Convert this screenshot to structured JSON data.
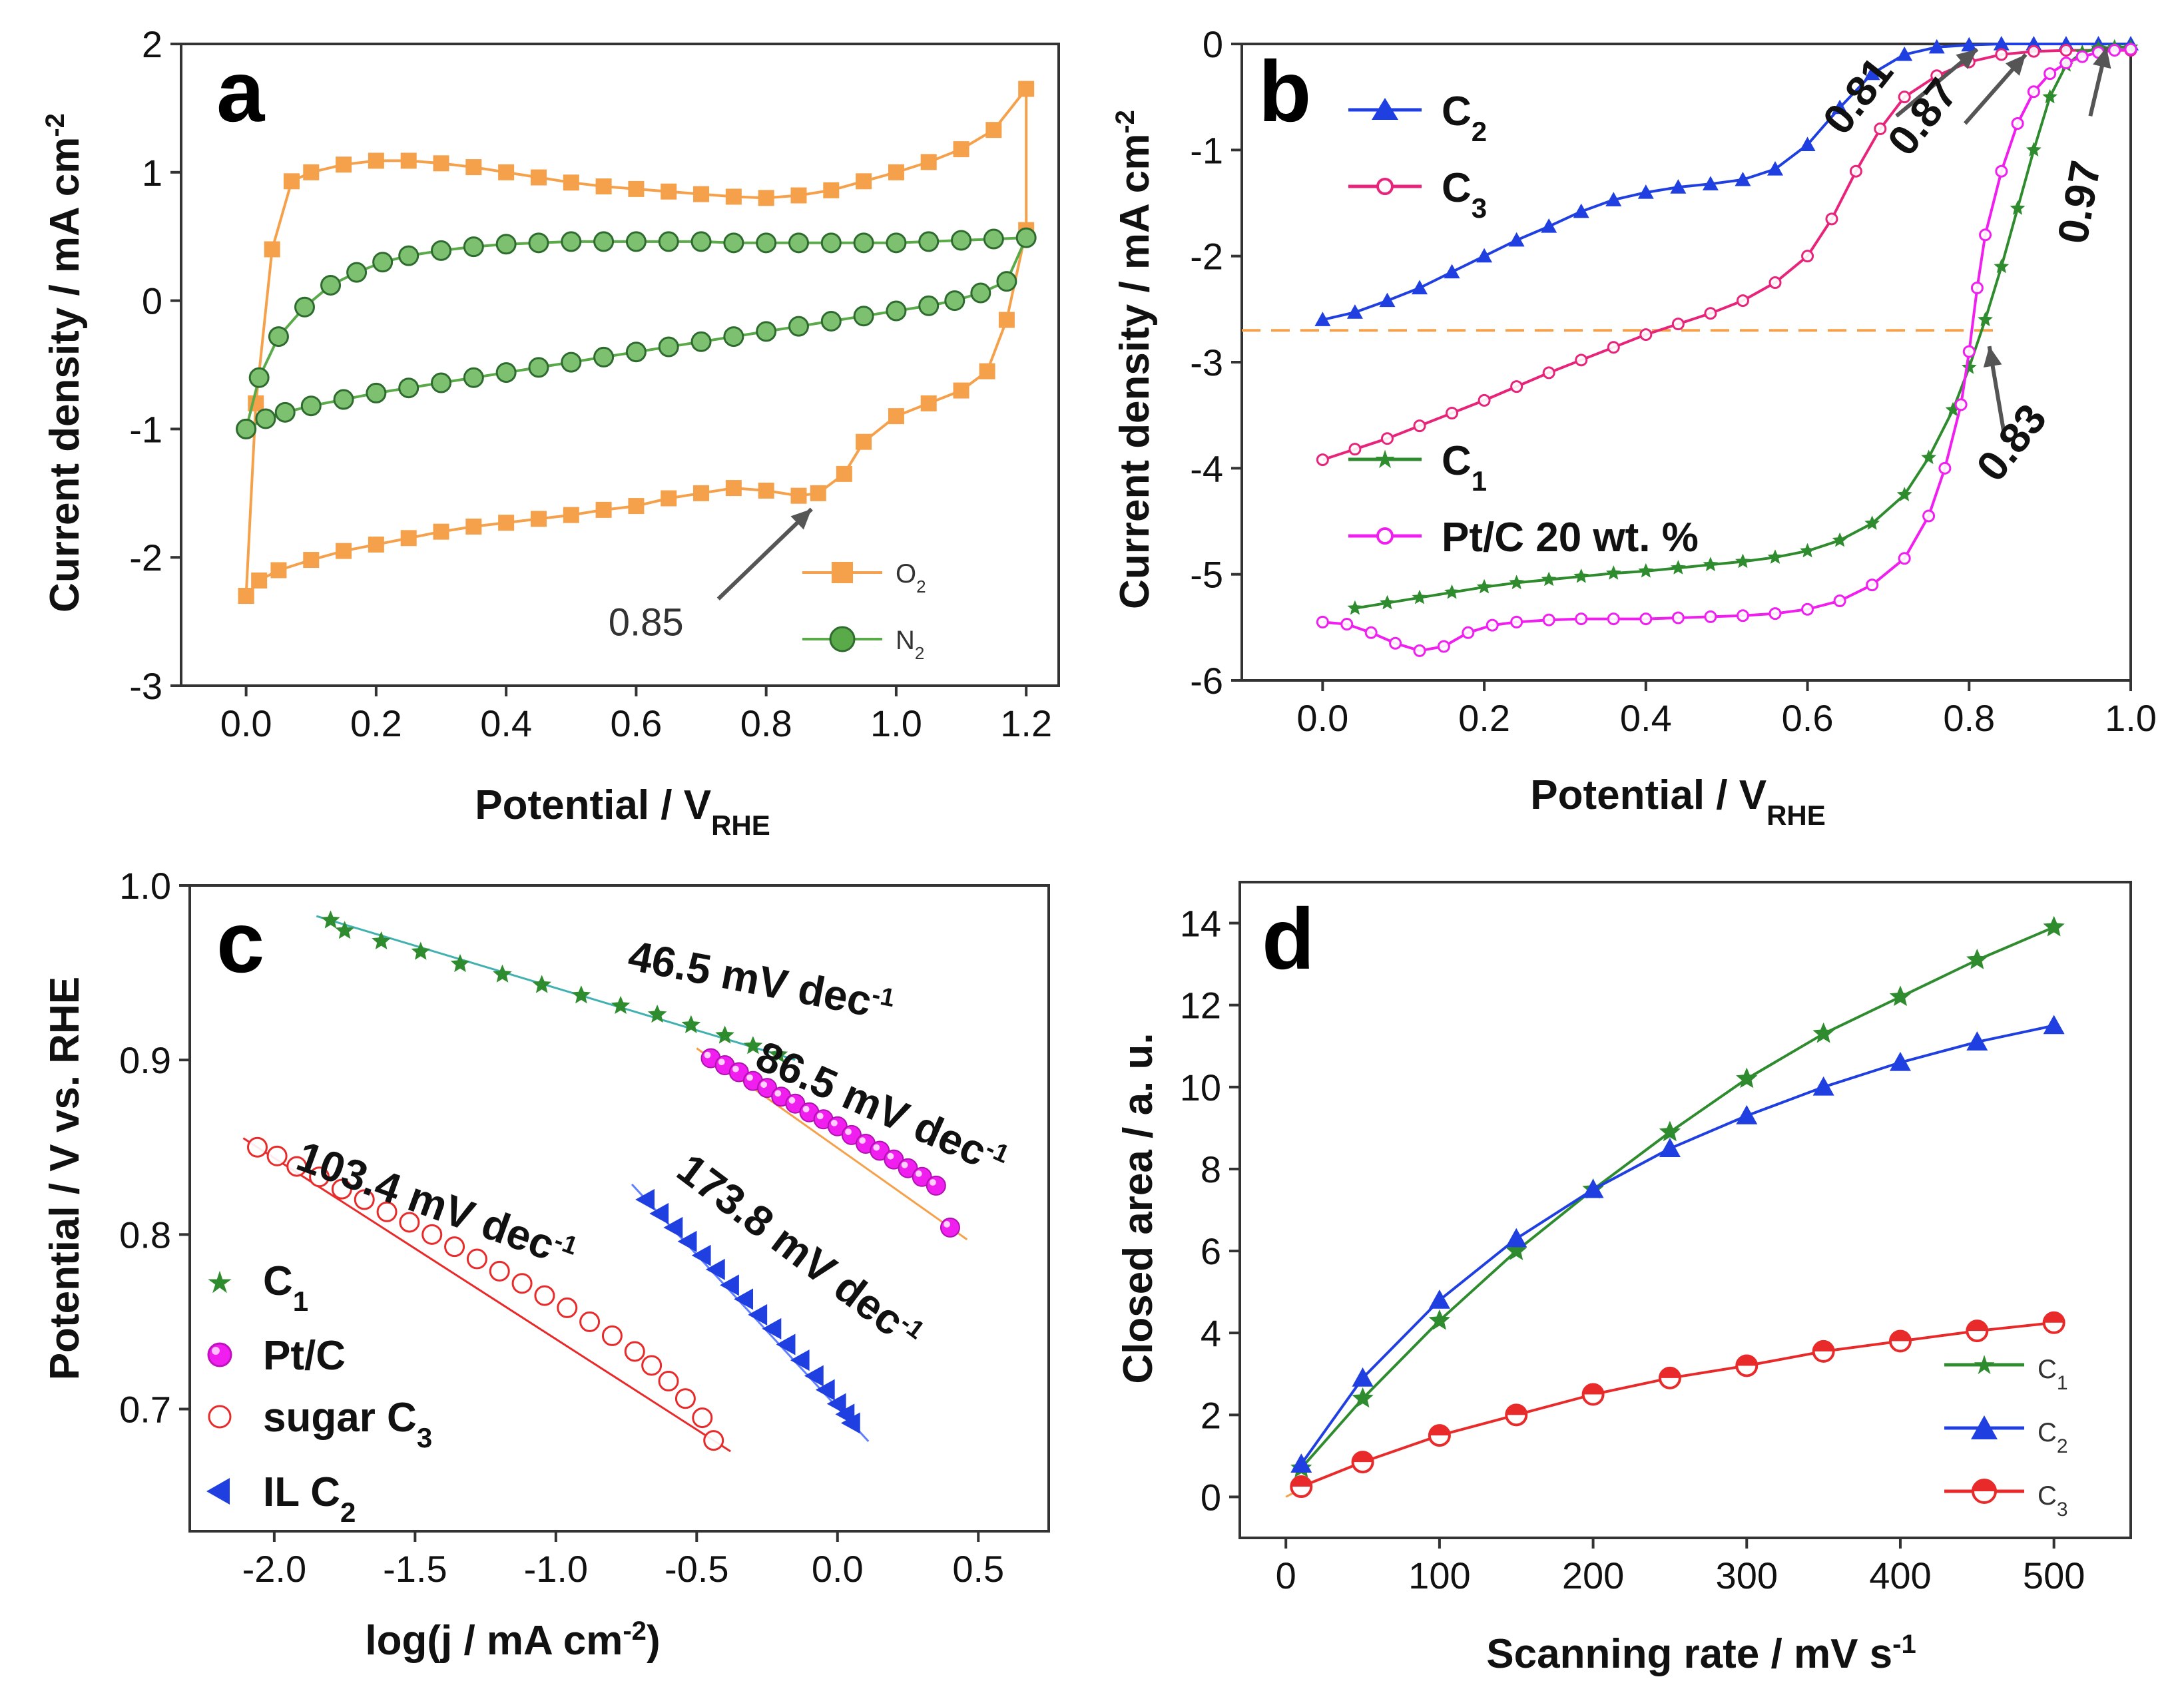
{
  "chart_data": [
    {
      "id": "a",
      "type": "line",
      "panel_label": "a",
      "xlabel": "Potential / V",
      "xlabel_sub": "RHE",
      "ylabel": "Current density / mA cm",
      "ylabel_sup": "-2",
      "xlim": [
        -0.1,
        1.25
      ],
      "ylim": [
        -3,
        2
      ],
      "xticks": [
        0.0,
        0.2,
        0.4,
        0.6,
        0.8,
        1.0,
        1.2
      ],
      "xtick_labels": [
        "0.0",
        "0.2",
        "0.4",
        "0.6",
        "0.8",
        "1.0",
        "1.2"
      ],
      "yticks": [
        -3,
        -2,
        -1,
        0,
        1,
        2
      ],
      "ytick_labels": [
        "-3",
        "-2",
        "-1",
        "0",
        "1",
        "2"
      ],
      "series": [
        {
          "name": "O2",
          "legend_main": "O",
          "legend_sub": "2",
          "color": "#F5A04A",
          "marker": "square",
          "x": [
            0.0,
            0.015,
            0.04,
            0.07,
            0.1,
            0.15,
            0.2,
            0.25,
            0.3,
            0.35,
            0.4,
            0.45,
            0.5,
            0.55,
            0.6,
            0.65,
            0.7,
            0.75,
            0.8,
            0.85,
            0.9,
            0.95,
            1.0,
            1.05,
            1.1,
            1.15,
            1.2,
            1.2,
            1.17,
            1.14,
            1.1,
            1.05,
            1.0,
            0.95,
            0.92,
            0.88,
            0.85,
            0.8,
            0.75,
            0.7,
            0.65,
            0.6,
            0.55,
            0.5,
            0.45,
            0.4,
            0.35,
            0.3,
            0.25,
            0.2,
            0.15,
            0.1,
            0.05,
            0.02,
            0.0
          ],
          "y": [
            -2.3,
            -0.8,
            0.4,
            0.93,
            1.0,
            1.06,
            1.09,
            1.09,
            1.07,
            1.04,
            1.0,
            0.96,
            0.92,
            0.89,
            0.87,
            0.85,
            0.83,
            0.81,
            0.8,
            0.82,
            0.86,
            0.93,
            1.0,
            1.08,
            1.18,
            1.33,
            1.65,
            0.55,
            -0.15,
            -0.55,
            -0.7,
            -0.8,
            -0.9,
            -1.1,
            -1.35,
            -1.5,
            -1.52,
            -1.48,
            -1.46,
            -1.5,
            -1.54,
            -1.6,
            -1.63,
            -1.67,
            -1.7,
            -1.73,
            -1.76,
            -1.8,
            -1.85,
            -1.9,
            -1.95,
            -2.02,
            -2.1,
            -2.18,
            -2.3
          ]
        },
        {
          "name": "N2",
          "legend_main": "N",
          "legend_sub": "2",
          "color": "#5AAA4A",
          "marker": "circle",
          "x": [
            0.0,
            0.02,
            0.05,
            0.09,
            0.13,
            0.17,
            0.21,
            0.25,
            0.3,
            0.35,
            0.4,
            0.45,
            0.5,
            0.55,
            0.6,
            0.65,
            0.7,
            0.75,
            0.8,
            0.85,
            0.9,
            0.95,
            1.0,
            1.05,
            1.1,
            1.15,
            1.2,
            1.17,
            1.13,
            1.09,
            1.05,
            1.0,
            0.95,
            0.9,
            0.85,
            0.8,
            0.75,
            0.7,
            0.65,
            0.6,
            0.55,
            0.5,
            0.45,
            0.4,
            0.35,
            0.3,
            0.25,
            0.2,
            0.15,
            0.1,
            0.06,
            0.03,
            0.0
          ],
          "y": [
            -1.0,
            -0.6,
            -0.28,
            -0.05,
            0.12,
            0.22,
            0.3,
            0.35,
            0.39,
            0.42,
            0.44,
            0.45,
            0.46,
            0.46,
            0.46,
            0.46,
            0.46,
            0.45,
            0.45,
            0.45,
            0.45,
            0.45,
            0.45,
            0.46,
            0.47,
            0.48,
            0.49,
            0.15,
            0.06,
            0.0,
            -0.04,
            -0.08,
            -0.12,
            -0.16,
            -0.2,
            -0.24,
            -0.28,
            -0.32,
            -0.36,
            -0.4,
            -0.44,
            -0.48,
            -0.52,
            -0.56,
            -0.6,
            -0.64,
            -0.68,
            -0.72,
            -0.77,
            -0.82,
            -0.87,
            -0.92,
            -1.0
          ]
        }
      ],
      "annotations": [
        {
          "text": "0.85",
          "x": 0.88,
          "y": -1.52
        }
      ]
    },
    {
      "id": "b",
      "type": "line",
      "panel_label": "b",
      "xlabel": "Potential / V",
      "xlabel_sub": "RHE",
      "ylabel": "Current density / mA cm",
      "ylabel_sup": "-2",
      "xlim": [
        -0.1,
        1.0
      ],
      "ylim": [
        -6,
        0
      ],
      "xticks": [
        0.0,
        0.2,
        0.4,
        0.6,
        0.8,
        1.0
      ],
      "xtick_labels": [
        "0.0",
        "0.2",
        "0.4",
        "0.6",
        "0.8",
        "1.0"
      ],
      "yticks": [
        -6,
        -5,
        -4,
        -3,
        -2,
        -1,
        0
      ],
      "ytick_labels": [
        "-6",
        "-5",
        "-4",
        "-3",
        "-2",
        "-1",
        "0"
      ],
      "reference_line_y": -2.7,
      "series": [
        {
          "name": "C2",
          "legend_main": "C",
          "legend_sub": "2",
          "color": "#1F3FE0",
          "marker": "triangle",
          "x": [
            0.0,
            0.04,
            0.08,
            0.12,
            0.16,
            0.2,
            0.24,
            0.28,
            0.32,
            0.36,
            0.4,
            0.44,
            0.48,
            0.52,
            0.56,
            0.6,
            0.64,
            0.68,
            0.72,
            0.76,
            0.8,
            0.84,
            0.88,
            0.92,
            0.96,
            1.0
          ],
          "y": [
            -2.6,
            -2.53,
            -2.42,
            -2.3,
            -2.15,
            -2.0,
            -1.85,
            -1.72,
            -1.58,
            -1.47,
            -1.4,
            -1.35,
            -1.32,
            -1.28,
            -1.18,
            -0.95,
            -0.6,
            -0.28,
            -0.1,
            -0.03,
            -0.01,
            0.0,
            0.0,
            0.0,
            0.0,
            0.0
          ]
        },
        {
          "name": "C3",
          "legend_main": "C",
          "legend_sub": "3",
          "color": "#E8237A",
          "marker": "circle-open",
          "x": [
            0.0,
            0.04,
            0.08,
            0.12,
            0.16,
            0.2,
            0.24,
            0.28,
            0.32,
            0.36,
            0.4,
            0.44,
            0.48,
            0.52,
            0.56,
            0.6,
            0.63,
            0.66,
            0.69,
            0.72,
            0.76,
            0.8,
            0.84,
            0.88,
            0.92,
            0.96,
            1.0
          ],
          "y": [
            -3.92,
            -3.82,
            -3.72,
            -3.6,
            -3.48,
            -3.36,
            -3.23,
            -3.1,
            -2.98,
            -2.86,
            -2.74,
            -2.64,
            -2.54,
            -2.42,
            -2.25,
            -2.0,
            -1.65,
            -1.2,
            -0.8,
            -0.5,
            -0.3,
            -0.17,
            -0.1,
            -0.07,
            -0.06,
            -0.06,
            -0.06
          ]
        },
        {
          "name": "C1",
          "legend_main": "C",
          "legend_sub": "1",
          "color": "#2E8B2E",
          "marker": "star",
          "x": [
            0.04,
            0.08,
            0.12,
            0.16,
            0.2,
            0.24,
            0.28,
            0.32,
            0.36,
            0.4,
            0.44,
            0.48,
            0.52,
            0.56,
            0.6,
            0.64,
            0.68,
            0.72,
            0.75,
            0.78,
            0.8,
            0.82,
            0.84,
            0.86,
            0.88,
            0.9,
            0.92,
            0.94,
            0.96,
            0.98,
            1.0
          ],
          "y": [
            -5.32,
            -5.27,
            -5.22,
            -5.17,
            -5.12,
            -5.08,
            -5.05,
            -5.02,
            -4.99,
            -4.97,
            -4.94,
            -4.91,
            -4.88,
            -4.84,
            -4.78,
            -4.68,
            -4.52,
            -4.25,
            -3.9,
            -3.45,
            -3.05,
            -2.6,
            -2.1,
            -1.55,
            -1.0,
            -0.5,
            -0.2,
            -0.08,
            -0.04,
            -0.03,
            -0.03
          ]
        },
        {
          "name": "Pt/C 20 wt. %",
          "legend_main": "Pt/C 20 wt. %",
          "legend_sub": "",
          "color": "#F01FF0",
          "marker": "circle-open",
          "x": [
            0.0,
            0.03,
            0.06,
            0.09,
            0.12,
            0.15,
            0.18,
            0.21,
            0.24,
            0.28,
            0.32,
            0.36,
            0.4,
            0.44,
            0.48,
            0.52,
            0.56,
            0.6,
            0.64,
            0.68,
            0.72,
            0.75,
            0.77,
            0.79,
            0.8,
            0.81,
            0.82,
            0.84,
            0.86,
            0.88,
            0.9,
            0.92,
            0.94,
            0.96,
            0.98,
            1.0
          ],
          "y": [
            -5.45,
            -5.47,
            -5.55,
            -5.65,
            -5.72,
            -5.68,
            -5.55,
            -5.48,
            -5.45,
            -5.43,
            -5.42,
            -5.42,
            -5.42,
            -5.41,
            -5.4,
            -5.39,
            -5.37,
            -5.33,
            -5.25,
            -5.1,
            -4.85,
            -4.45,
            -4.0,
            -3.4,
            -2.9,
            -2.3,
            -1.8,
            -1.2,
            -0.75,
            -0.45,
            -0.28,
            -0.18,
            -0.12,
            -0.08,
            -0.06,
            -0.05
          ]
        }
      ],
      "annotations": [
        {
          "text": "0.81",
          "x": 0.81
        },
        {
          "text": "0.87",
          "x": 0.87
        },
        {
          "text": "0.97",
          "x": 0.97
        },
        {
          "text": "0.83",
          "x": 0.83
        }
      ]
    },
    {
      "id": "c",
      "type": "scatter",
      "panel_label": "c",
      "xlabel": "log(j / mA cm",
      "xlabel_sup": "-2",
      "xlabel_close": ")",
      "ylabel": "Potential / V vs. RHE",
      "xlim": [
        -2.3,
        0.75
      ],
      "ylim": [
        0.63,
        1.0
      ],
      "xticks": [
        -2.0,
        -1.5,
        -1.0,
        -0.5,
        0.0,
        0.5
      ],
      "xtick_labels": [
        "-2.0",
        "-1.5",
        "-1.0",
        "-0.5",
        "0.0",
        "0.5"
      ],
      "yticks": [
        0.7,
        0.8,
        0.9,
        1.0
      ],
      "ytick_labels": [
        "0.7",
        "0.8",
        "0.9",
        "1.0"
      ],
      "series": [
        {
          "name": "C1",
          "legend_main": "C",
          "legend_sub": "1",
          "color": "#2E8B2E",
          "marker": "star",
          "fit_color": "#40B0B0",
          "x": [
            -1.8,
            -1.75,
            -1.62,
            -1.48,
            -1.34,
            -1.19,
            -1.05,
            -0.91,
            -0.77,
            -0.64,
            -0.52,
            -0.4,
            -0.3,
            -0.21
          ],
          "y": [
            0.98,
            0.974,
            0.968,
            0.962,
            0.955,
            0.949,
            0.943,
            0.937,
            0.931,
            0.926,
            0.92,
            0.914,
            0.908,
            0.903
          ]
        },
        {
          "name": "Pt/C",
          "legend_main": "Pt/C",
          "legend_sub": "",
          "color": "#F01FF0",
          "marker": "sphere",
          "fit_color": "#F5A04A",
          "x": [
            -0.45,
            -0.4,
            -0.35,
            -0.3,
            -0.25,
            -0.2,
            -0.15,
            -0.1,
            -0.05,
            0.0,
            0.05,
            0.1,
            0.15,
            0.2,
            0.25,
            0.3,
            0.35,
            0.4
          ],
          "y": [
            0.901,
            0.897,
            0.893,
            0.888,
            0.884,
            0.879,
            0.875,
            0.87,
            0.866,
            0.862,
            0.857,
            0.852,
            0.848,
            0.843,
            0.838,
            0.833,
            0.828,
            0.804
          ]
        },
        {
          "name": "sugar C3",
          "legend_main": "sugar C",
          "legend_sub": "3",
          "color": "#E82A2A",
          "marker": "circle-open",
          "fit_color": "#E82A2A",
          "x": [
            -2.06,
            -1.99,
            -1.92,
            -1.84,
            -1.76,
            -1.68,
            -1.6,
            -1.52,
            -1.44,
            -1.36,
            -1.28,
            -1.2,
            -1.12,
            -1.04,
            -0.96,
            -0.88,
            -0.8,
            -0.72,
            -0.66,
            -0.6,
            -0.54,
            -0.48,
            -0.44
          ],
          "y": [
            0.85,
            0.845,
            0.839,
            0.833,
            0.826,
            0.82,
            0.813,
            0.807,
            0.8,
            0.793,
            0.786,
            0.779,
            0.772,
            0.765,
            0.758,
            0.75,
            0.742,
            0.733,
            0.725,
            0.716,
            0.706,
            0.695,
            0.682
          ]
        },
        {
          "name": "IL C2",
          "legend_main": "IL C",
          "legend_sub": "2",
          "color": "#1F3FE0",
          "marker": "triangle-left",
          "fit_color": "#6080FF",
          "x": [
            -0.68,
            -0.63,
            -0.58,
            -0.53,
            -0.48,
            -0.43,
            -0.38,
            -0.33,
            -0.28,
            -0.23,
            -0.18,
            -0.13,
            -0.08,
            -0.04,
            0.0,
            0.03,
            0.05
          ],
          "y": [
            0.82,
            0.812,
            0.804,
            0.796,
            0.788,
            0.78,
            0.771,
            0.763,
            0.754,
            0.746,
            0.737,
            0.728,
            0.719,
            0.711,
            0.703,
            0.697,
            0.692
          ]
        }
      ],
      "annotations": [
        {
          "text": "46.5 mV dec",
          "sup": "-1",
          "series": "C1"
        },
        {
          "text": "86.5 mV dec",
          "sup": "-1",
          "series": "Pt/C"
        },
        {
          "text": "103.4 mV dec",
          "sup": "-1",
          "series": "sugar C3"
        },
        {
          "text": "173.8 mV dec",
          "sup": "-1",
          "series": "IL C2"
        }
      ]
    },
    {
      "id": "d",
      "type": "line",
      "panel_label": "d",
      "xlabel": "Scanning rate / mV s",
      "xlabel_sup": "-1",
      "ylabel": "Closed area / a. u.",
      "xlim": [
        -30,
        550
      ],
      "ylim": [
        -1,
        15
      ],
      "xticks": [
        0,
        100,
        200,
        300,
        400,
        500
      ],
      "xtick_labels": [
        "0",
        "100",
        "200",
        "300",
        "400",
        "500"
      ],
      "yticks": [
        0,
        2,
        4,
        6,
        8,
        10,
        12,
        14
      ],
      "ytick_labels": [
        "0",
        "2",
        "4",
        "6",
        "8",
        "10",
        "12",
        "14"
      ],
      "series": [
        {
          "name": "C1",
          "legend_main": "C",
          "legend_sub": "1",
          "color": "#2E8B2E",
          "marker": "star",
          "x": [
            10,
            50,
            100,
            150,
            200,
            250,
            300,
            350,
            400,
            450,
            500
          ],
          "y": [
            0.7,
            2.4,
            4.3,
            6.0,
            7.5,
            8.9,
            10.2,
            11.3,
            12.2,
            13.1,
            13.9
          ]
        },
        {
          "name": "C2",
          "legend_main": "C",
          "legend_sub": "2",
          "color": "#1F3FE0",
          "marker": "triangle",
          "x": [
            10,
            50,
            100,
            150,
            200,
            250,
            300,
            350,
            400,
            450,
            500
          ],
          "y": [
            0.8,
            2.9,
            4.8,
            6.3,
            7.5,
            8.5,
            9.3,
            10.0,
            10.6,
            11.1,
            11.5
          ]
        },
        {
          "name": "C3",
          "legend_main": "C",
          "legend_sub": "3",
          "color": "#E82A2A",
          "marker": "circle-half",
          "x": [
            10,
            50,
            100,
            150,
            200,
            250,
            300,
            350,
            400,
            450,
            500
          ],
          "y": [
            0.25,
            0.85,
            1.5,
            2.0,
            2.5,
            2.9,
            3.2,
            3.55,
            3.8,
            4.05,
            4.25
          ]
        }
      ]
    }
  ]
}
